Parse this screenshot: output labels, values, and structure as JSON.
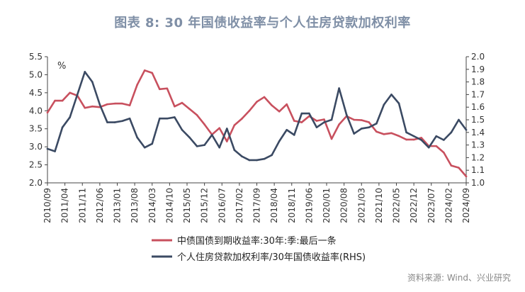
{
  "figure": {
    "title": "图表 8:  30 年国债收益率与个人住房贷款加权利率",
    "source": "资料来源: Wind、兴业研究"
  },
  "colors": {
    "primary": "#c8505e",
    "secondary": "#3b4a63"
  },
  "chart_data": {
    "type": "line",
    "title": "",
    "ylabel_left": "%",
    "ylim_left": [
      2.0,
      5.5
    ],
    "yticks_left": [
      "2.0",
      "2.5",
      "3.0",
      "3.5",
      "4.0",
      "4.5",
      "5.0",
      "5.5"
    ],
    "ylim_right": [
      1.0,
      2.0
    ],
    "yticks_right": [
      "1.0",
      "1.1",
      "1.2",
      "1.3",
      "1.4",
      "1.5",
      "1.6",
      "1.7",
      "1.8",
      "1.9",
      "2.0"
    ],
    "x_ticks": [
      "2010/09",
      "2011/04",
      "2011/11",
      "2012/06",
      "2013/01",
      "2013/08",
      "2014/03",
      "2014/10",
      "2015/05",
      "2015/12",
      "2016/07",
      "2017/02",
      "2017/09",
      "2018/04",
      "2018/11",
      "2019/06",
      "2020/01",
      "2020/08",
      "2021/03",
      "2021/10",
      "2022/05",
      "2022/12",
      "2023/07",
      "2024/02",
      "2024/09"
    ],
    "x": [
      "2010Q3",
      "2010Q4",
      "2011Q1",
      "2011Q2",
      "2011Q3",
      "2011Q4",
      "2012Q1",
      "2012Q2",
      "2012Q3",
      "2012Q4",
      "2013Q1",
      "2013Q2",
      "2013Q3",
      "2013Q4",
      "2014Q1",
      "2014Q2",
      "2014Q3",
      "2014Q4",
      "2015Q1",
      "2015Q2",
      "2015Q3",
      "2015Q4",
      "2016Q1",
      "2016Q2",
      "2016Q3",
      "2016Q4",
      "2017Q1",
      "2017Q2",
      "2017Q3",
      "2017Q4",
      "2018Q1",
      "2018Q2",
      "2018Q3",
      "2018Q4",
      "2019Q1",
      "2019Q2",
      "2019Q3",
      "2019Q4",
      "2020Q1",
      "2020Q2",
      "2020Q3",
      "2020Q4",
      "2021Q1",
      "2021Q2",
      "2021Q3",
      "2021Q4",
      "2022Q1",
      "2022Q2",
      "2022Q3",
      "2022Q4",
      "2023Q1",
      "2023Q2",
      "2023Q3",
      "2023Q4",
      "2024Q1",
      "2024Q2",
      "2024Q3"
    ],
    "series": [
      {
        "name": "中债国债到期收益率:30年:季:最后一条",
        "axis": "left",
        "color": "#c8505e",
        "values": [
          3.95,
          4.28,
          4.28,
          4.5,
          4.42,
          4.08,
          4.12,
          4.1,
          4.18,
          4.2,
          4.2,
          4.15,
          4.72,
          5.12,
          5.05,
          4.6,
          4.62,
          4.12,
          4.22,
          4.05,
          3.88,
          3.62,
          3.34,
          3.52,
          3.15,
          3.6,
          3.78,
          4.0,
          4.25,
          4.38,
          4.15,
          3.98,
          4.18,
          3.72,
          3.68,
          3.85,
          3.72,
          3.76,
          3.22,
          3.62,
          3.85,
          3.75,
          3.74,
          3.68,
          3.42,
          3.35,
          3.38,
          3.3,
          3.2,
          3.2,
          3.25,
          3.02,
          3.02,
          2.84,
          2.48,
          2.42,
          2.18
        ]
      },
      {
        "name": "个人住房贷款加权利率/30年国债收益率(RHS)",
        "axis": "right",
        "color": "#3b4a63",
        "values": [
          1.27,
          1.25,
          1.44,
          1.52,
          1.7,
          1.88,
          1.8,
          1.62,
          1.48,
          1.48,
          1.49,
          1.51,
          1.36,
          1.28,
          1.31,
          1.51,
          1.51,
          1.52,
          1.42,
          1.36,
          1.29,
          1.3,
          1.38,
          1.28,
          1.43,
          1.26,
          1.21,
          1.18,
          1.18,
          1.19,
          1.22,
          1.33,
          1.42,
          1.38,
          1.55,
          1.55,
          1.44,
          1.48,
          1.5,
          1.75,
          1.54,
          1.39,
          1.43,
          1.44,
          1.47,
          1.62,
          1.7,
          1.63,
          1.4,
          1.37,
          1.34,
          1.28,
          1.37,
          1.34,
          1.4,
          1.5,
          1.42
        ]
      }
    ],
    "grid": false,
    "legend_position": "bottom"
  }
}
